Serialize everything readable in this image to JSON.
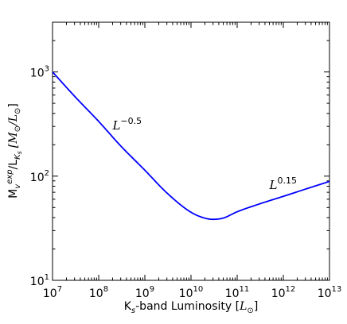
{
  "chart_data": {
    "type": "line",
    "xscale": "log",
    "yscale": "log",
    "xlim": [
      10000000.0,
      10000000000000.0
    ],
    "ylim": [
      10,
      3000
    ],
    "x_major_ticks": [
      10000000.0,
      100000000.0,
      1000000000.0,
      10000000000.0,
      100000000000.0,
      1000000000000.0,
      10000000000000.0
    ],
    "x_tick_labels": [
      {
        "base": "10",
        "exp": "7"
      },
      {
        "base": "10",
        "exp": "8"
      },
      {
        "base": "10",
        "exp": "9"
      },
      {
        "base": "10",
        "exp": "10"
      },
      {
        "base": "10",
        "exp": "11"
      },
      {
        "base": "10",
        "exp": "12"
      },
      {
        "base": "10",
        "exp": "13"
      }
    ],
    "y_major_ticks": [
      10,
      100,
      1000
    ],
    "y_tick_labels": [
      {
        "base": "10",
        "exp": "1"
      },
      {
        "base": "10",
        "exp": "2"
      },
      {
        "base": "10",
        "exp": "3"
      }
    ],
    "xlabel": {
      "pre": "K",
      "sub": "s",
      "post": "-band Luminosity [",
      "unit": "L",
      "unit_sub": "⊙",
      "close": "]"
    },
    "ylabel": {
      "m": "M",
      "v": "v",
      "exp": "exp",
      "slash": "/L",
      "ks_k": "K",
      "ks_s": "s",
      "bracket": "[M",
      "sun1": "⊙",
      "mid": "/L",
      "sun2": "⊙",
      "close": "]"
    },
    "grid": false,
    "series": [
      {
        "color": "#0000ff",
        "x": [
          10000000.0,
          30000000.0,
          100000000.0,
          300000000.0,
          1000000000.0,
          3000000000.0,
          10000000000.0,
          20000000000.0,
          30000000000.0,
          50000000000.0,
          100000000000.0,
          300000000000.0,
          1000000000000.0,
          3000000000000.0,
          10000000000000.0
        ],
        "y": [
          1000,
          585,
          335,
          195,
          114,
          69,
          45,
          39.5,
          38.5,
          39.6,
          45.5,
          54,
          64,
          75,
          89
        ]
      }
    ],
    "annotations": [
      {
        "base": "L",
        "exp": "−0.5",
        "x": 200000000.0,
        "y": 280
      },
      {
        "base": "L",
        "exp": "0.15",
        "x": 500000000000.0,
        "y": 75
      }
    ]
  }
}
